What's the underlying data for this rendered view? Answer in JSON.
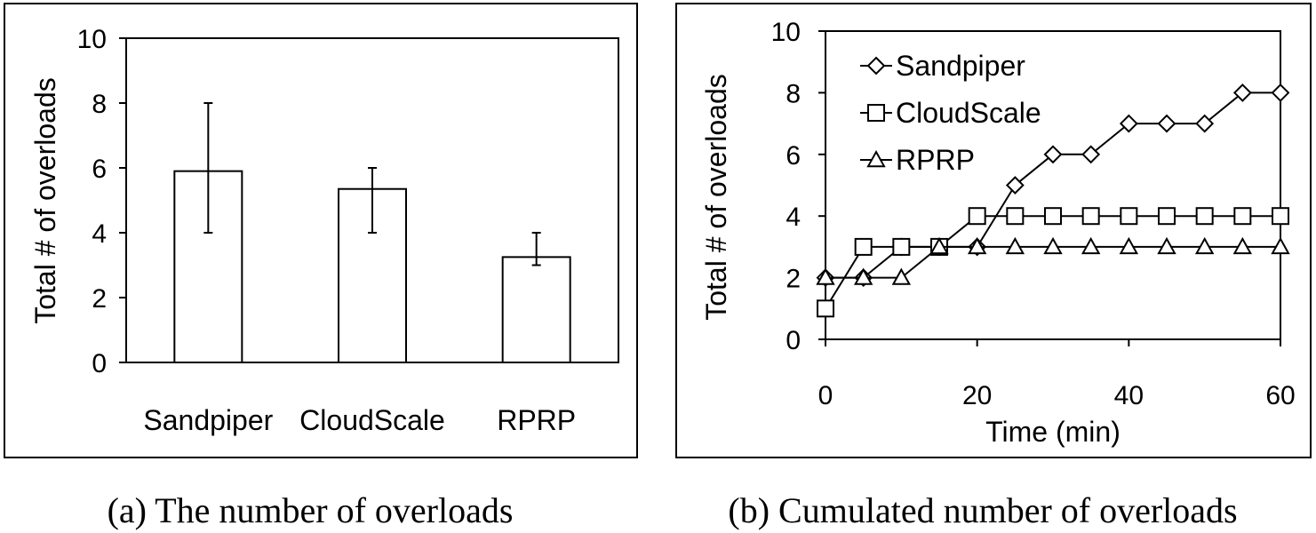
{
  "chart_data": [
    {
      "type": "bar",
      "categories": [
        "Sandpiper",
        "CloudScale",
        "RPRP"
      ],
      "values": [
        5.9,
        5.35,
        3.25
      ],
      "error_low": [
        4,
        4,
        3
      ],
      "error_high": [
        8,
        6,
        4
      ],
      "ylabel": "Total # of overloads",
      "ylim": [
        0,
        10
      ],
      "yticks": [
        0,
        2,
        4,
        6,
        8,
        10
      ],
      "grid": false,
      "caption": "(a) The number of overloads"
    },
    {
      "type": "line",
      "x": [
        0,
        5,
        10,
        15,
        20,
        25,
        30,
        35,
        40,
        45,
        50,
        55,
        60
      ],
      "series": [
        {
          "name": "Sandpiper",
          "marker": "diamond",
          "values": [
            2,
            2,
            3,
            3,
            3,
            5,
            6,
            6,
            7,
            7,
            7,
            8,
            8
          ]
        },
        {
          "name": "CloudScale",
          "marker": "square",
          "values": [
            1,
            3,
            3,
            3,
            4,
            4,
            4,
            4,
            4,
            4,
            4,
            4,
            4
          ]
        },
        {
          "name": "RPRP",
          "marker": "triangle",
          "values": [
            2,
            2,
            2,
            3,
            3,
            3,
            3,
            3,
            3,
            3,
            3,
            3,
            3
          ]
        }
      ],
      "xlabel": "Time (min)",
      "ylabel": "Total # of overloads",
      "xlim": [
        0,
        60
      ],
      "ylim": [
        0,
        10
      ],
      "xticks": [
        0,
        20,
        40,
        60
      ],
      "yticks": [
        0,
        2,
        4,
        6,
        8,
        10
      ],
      "grid": false,
      "legend": "top-left",
      "caption": "(b) Cumulated number of overloads"
    }
  ]
}
